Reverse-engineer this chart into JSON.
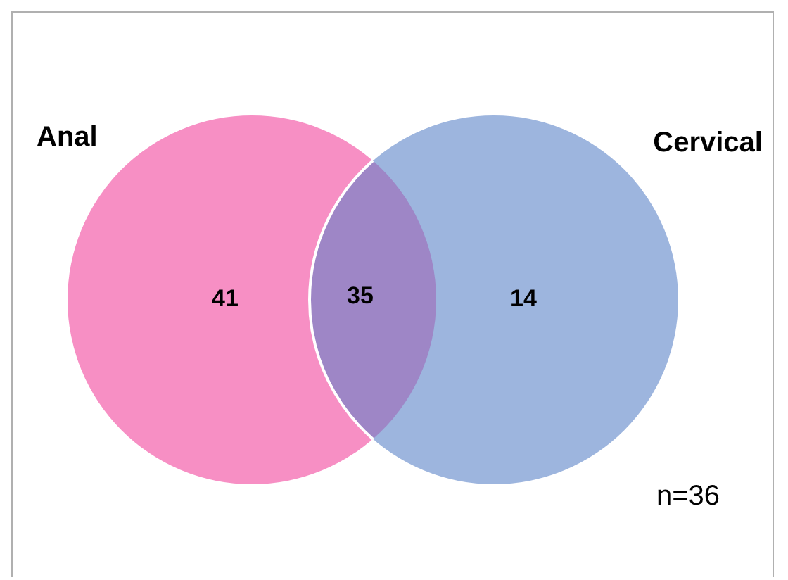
{
  "chart_data": {
    "type": "other",
    "categories": [
      "Anal",
      null,
      "Cervical"
    ],
    "values": [
      41,
      35,
      14
    ],
    "colors": [
      "#f78fc4",
      "#9e86c6",
      "#9db5de"
    ],
    "data_labels": true,
    "annotations": [
      "n=36"
    ]
  }
}
